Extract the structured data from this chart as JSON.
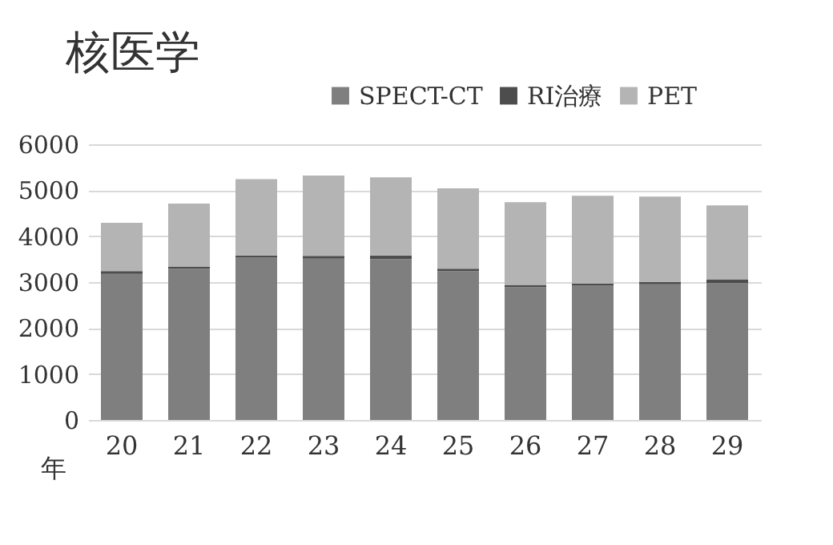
{
  "chart_data": {
    "type": "bar",
    "title": "核医学",
    "xlabel": "年",
    "stacked": true,
    "categories": [
      "20",
      "21",
      "22",
      "23",
      "24",
      "25",
      "26",
      "27",
      "28",
      "29"
    ],
    "series": [
      {
        "name": "SPECT-CT",
        "color": "#7f7f7f",
        "values": [
          3180,
          3290,
          3530,
          3510,
          3500,
          3240,
          2890,
          2920,
          2950,
          2980
        ]
      },
      {
        "name": "RI治療",
        "color": "#4d4d4d",
        "values": [
          60,
          40,
          50,
          60,
          80,
          50,
          50,
          50,
          50,
          80
        ]
      },
      {
        "name": "PET",
        "color": "#b4b4b4",
        "values": [
          1050,
          1380,
          1660,
          1750,
          1700,
          1750,
          1800,
          1910,
          1860,
          1610
        ]
      }
    ],
    "ylim": [
      0,
      6000
    ],
    "yticks": [
      0,
      1000,
      2000,
      3000,
      4000,
      5000,
      6000
    ],
    "grid": "y",
    "legend": "top right"
  }
}
